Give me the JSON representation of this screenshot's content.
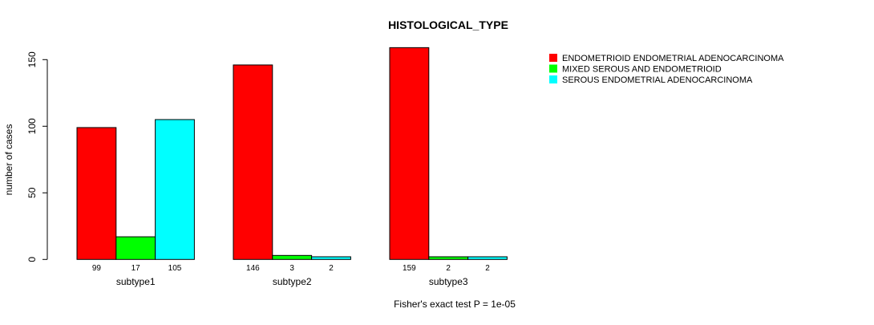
{
  "chart_data": {
    "type": "bar",
    "title": "HISTOLOGICAL_TYPE",
    "xlabel": "",
    "ylabel": "number of cases",
    "ylim": [
      0,
      150
    ],
    "yticks": [
      0,
      50,
      100,
      150
    ],
    "categories": [
      "subtype1",
      "subtype2",
      "subtype3"
    ],
    "series": [
      {
        "name": "ENDOMETRIOID ENDOMETRIAL ADENOCARCINOMA",
        "color": "#ff0000",
        "values": [
          99,
          146,
          159
        ]
      },
      {
        "name": "MIXED SEROUS AND ENDOMETRIOID",
        "color": "#00ff00",
        "values": [
          17,
          3,
          2
        ]
      },
      {
        "name": "SEROUS ENDOMETRIAL ADENOCARCINOMA",
        "color": "#00ffff",
        "values": [
          105,
          2,
          2
        ]
      }
    ],
    "legend_position": "top-right",
    "footnote": "Fisher's exact test P = 1e-05",
    "grid": false
  }
}
